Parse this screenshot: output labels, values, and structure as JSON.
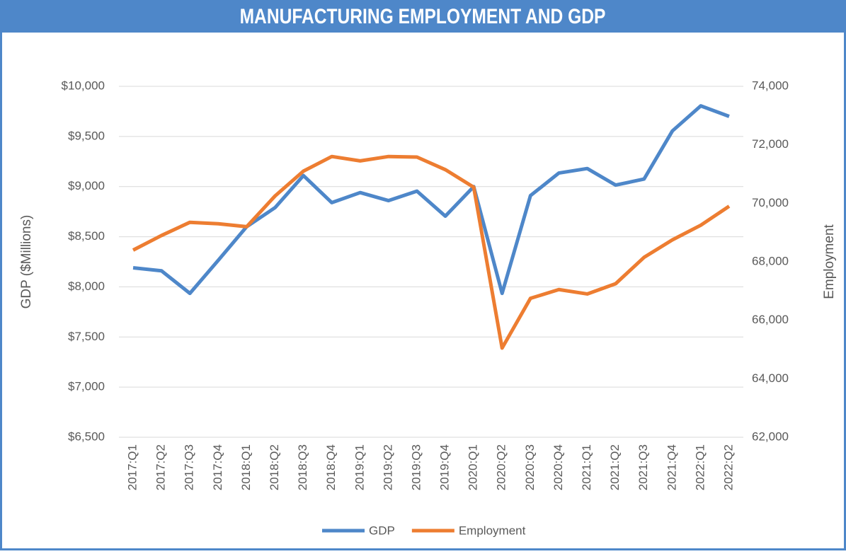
{
  "chart_data": {
    "type": "line",
    "title": "MANUFACTURING EMPLOYMENT AND GDP",
    "y_label": "GDP ($Millions)",
    "y2_label": "Employment",
    "categories": [
      "2017:Q1",
      "2017:Q2",
      "2017:Q3",
      "2017:Q4",
      "2018:Q1",
      "2018:Q2",
      "2018:Q3",
      "2018:Q4",
      "2019:Q1",
      "2019:Q2",
      "2019:Q3",
      "2019:Q4",
      "2020:Q1",
      "2020:Q2",
      "2020:Q3",
      "2020:Q4",
      "2021:Q1",
      "2021:Q2",
      "2021:Q3",
      "2021:Q4",
      "2022:Q1",
      "2022:Q2"
    ],
    "series": [
      {
        "name": "GDP",
        "color": "#4e87c9",
        "axis": "y",
        "values": [
          8190,
          8160,
          7935,
          8265,
          8600,
          8790,
          9110,
          8840,
          8940,
          8860,
          8955,
          8705,
          9000,
          7935,
          8910,
          9135,
          9180,
          9015,
          9075,
          9555,
          9805,
          9700
        ]
      },
      {
        "name": "Employment",
        "color": "#ed7d31",
        "axis": "y2",
        "values": [
          68400,
          68900,
          69350,
          69300,
          69200,
          70250,
          71100,
          71600,
          71450,
          71600,
          71580,
          71150,
          70550,
          65050,
          66750,
          67050,
          66900,
          67250,
          68150,
          68750,
          69250,
          69900
        ]
      }
    ],
    "ylim": [
      6500,
      10000
    ],
    "yticks": [
      {
        "value": 6500,
        "label": "$6,500"
      },
      {
        "value": 7000,
        "label": "$7,000"
      },
      {
        "value": 7500,
        "label": "$7,500"
      },
      {
        "value": 8000,
        "label": "$8,000"
      },
      {
        "value": 8500,
        "label": "$8,500"
      },
      {
        "value": 9000,
        "label": "$9,000"
      },
      {
        "value": 9500,
        "label": "$9,500"
      },
      {
        "value": 10000,
        "label": "$10,000"
      }
    ],
    "y2lim": [
      62000,
      74000
    ],
    "y2ticks": [
      {
        "value": 62000,
        "label": "62,000"
      },
      {
        "value": 64000,
        "label": "64,000"
      },
      {
        "value": 66000,
        "label": "66,000"
      },
      {
        "value": 68000,
        "label": "68,000"
      },
      {
        "value": 70000,
        "label": "70,000"
      },
      {
        "value": 72000,
        "label": "72,000"
      },
      {
        "value": 74000,
        "label": "74,000"
      }
    ],
    "grid": true,
    "legend": "bottom"
  }
}
